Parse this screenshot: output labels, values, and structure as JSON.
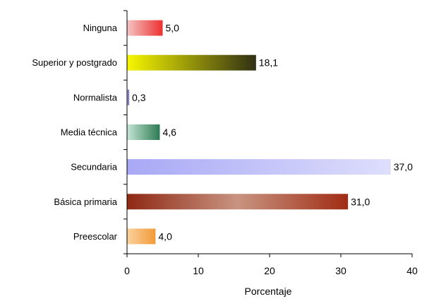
{
  "chart_data": {
    "type": "bar",
    "orientation": "horizontal",
    "categories": [
      "Ninguna",
      "Superior y postgrado",
      "Normalista",
      "Media técnica",
      "Secundaria",
      "Básica primaria",
      "Preescolar"
    ],
    "values": [
      5.0,
      18.1,
      0.3,
      4.6,
      37.0,
      31.0,
      4.0
    ],
    "value_labels": [
      "5,0",
      "18,1",
      "0,3",
      "4,6",
      "37,0",
      "31,0",
      "4,0"
    ],
    "bar_colors": [
      [
        "#f4c4c4",
        "#ee3030"
      ],
      [
        "#f7f700",
        "#2f2f14"
      ],
      [
        "#c8c8f0",
        "#5a5ab8"
      ],
      [
        "#c6e6d6",
        "#2c7a52"
      ],
      [
        "#a8a8f6",
        "#dedefc"
      ],
      [
        "#8e2814",
        "#c89480",
        "#a02c14"
      ],
      [
        "#fad29c",
        "#f29a3a"
      ]
    ],
    "xlim": [
      0,
      40
    ],
    "xticks": [
      "0",
      "10",
      "20",
      "30",
      "40"
    ],
    "xlabel": "Porcentaje",
    "title": "",
    "grid": false
  }
}
